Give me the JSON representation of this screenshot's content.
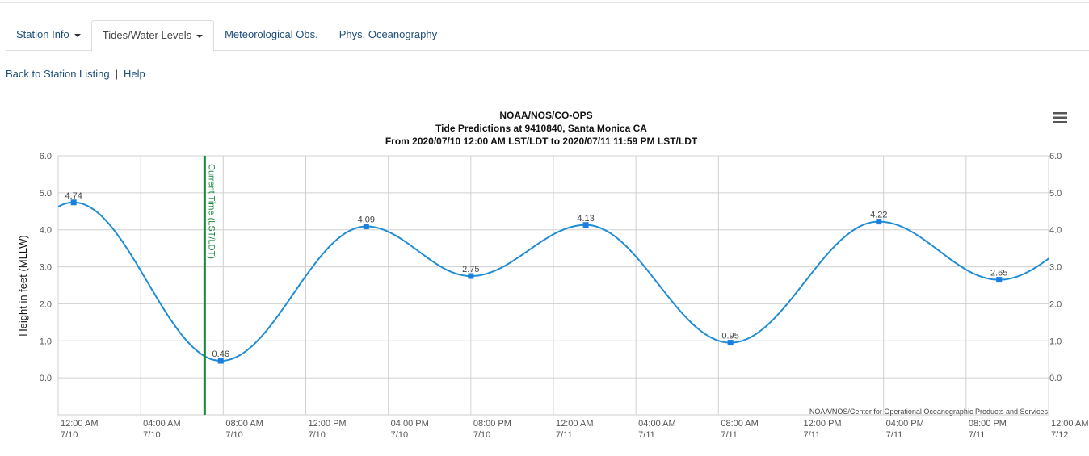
{
  "tabs": [
    {
      "label": "Station Info",
      "dropdown": true,
      "active": false
    },
    {
      "label": "Tides/Water Levels",
      "dropdown": true,
      "active": true
    },
    {
      "label": "Meteorological Obs.",
      "dropdown": false,
      "active": false
    },
    {
      "label": "Phys. Oceanography",
      "dropdown": false,
      "active": false
    }
  ],
  "links": {
    "back": "Back to Station Listing",
    "separator": "|",
    "help": "Help"
  },
  "chart_data": {
    "type": "line",
    "title": "NOAA/NOS/CO-OPS",
    "subtitle_lines": [
      "Tide Predictions at 9410840, Santa Monica CA",
      "From 2020/07/10 12:00 AM LST/LDT to 2020/07/11 11:59 PM LST/LDT"
    ],
    "ylabel": "Height in feet (MLLW)",
    "ylim": [
      -1,
      6
    ],
    "yticks": [
      "6.0",
      "5.0",
      "4.0",
      "3.0",
      "2.0",
      "1.0",
      "0.0"
    ],
    "xlim_hours_from_start": [
      0,
      48
    ],
    "xticks": [
      [
        "12:00 AM",
        "7/10"
      ],
      [
        "04:00 AM",
        "7/10"
      ],
      [
        "08:00 AM",
        "7/10"
      ],
      [
        "12:00 PM",
        "7/10"
      ],
      [
        "04:00 PM",
        "7/10"
      ],
      [
        "08:00 PM",
        "7/10"
      ],
      [
        "12:00 AM",
        "7/11"
      ],
      [
        "04:00 AM",
        "7/11"
      ],
      [
        "08:00 AM",
        "7/11"
      ],
      [
        "12:00 PM",
        "7/11"
      ],
      [
        "04:00 PM",
        "7/11"
      ],
      [
        "08:00 PM",
        "7/11"
      ],
      [
        "12:00 AM",
        "7/12"
      ]
    ],
    "grid": true,
    "series": [
      {
        "color": "#1f8dd6",
        "points": [
          {
            "time": "7/10 12:45 AM",
            "hour": 0.75,
            "value": 4.74,
            "label": "4.74"
          },
          {
            "time": "7/10 07:53 AM",
            "hour": 7.88,
            "value": 0.46,
            "label": "0.46"
          },
          {
            "time": "7/10 02:56 PM",
            "hour": 14.93,
            "value": 4.09,
            "label": "4.09"
          },
          {
            "time": "7/10 08:00 PM",
            "hour": 20.0,
            "value": 2.75,
            "label": "2.75"
          },
          {
            "time": "7/11 01:34 AM",
            "hour": 25.57,
            "value": 4.13,
            "label": "4.13"
          },
          {
            "time": "7/11 08:35 AM",
            "hour": 32.58,
            "value": 0.95,
            "label": "0.95"
          },
          {
            "time": "7/11 03:46 PM",
            "hour": 39.77,
            "value": 4.22,
            "label": "4.22"
          },
          {
            "time": "7/11 09:37 PM",
            "hour": 45.6,
            "value": 2.65,
            "label": "2.65"
          }
        ]
      }
    ],
    "current_time": {
      "label": "Current Time (LST/LDT)",
      "hour": 7.1,
      "color": "#1a8a3a"
    },
    "credits": "NOAA/NOS/Center for Operational Oceanographic Products and Services",
    "menu_icon": "hamburger-menu-icon"
  }
}
